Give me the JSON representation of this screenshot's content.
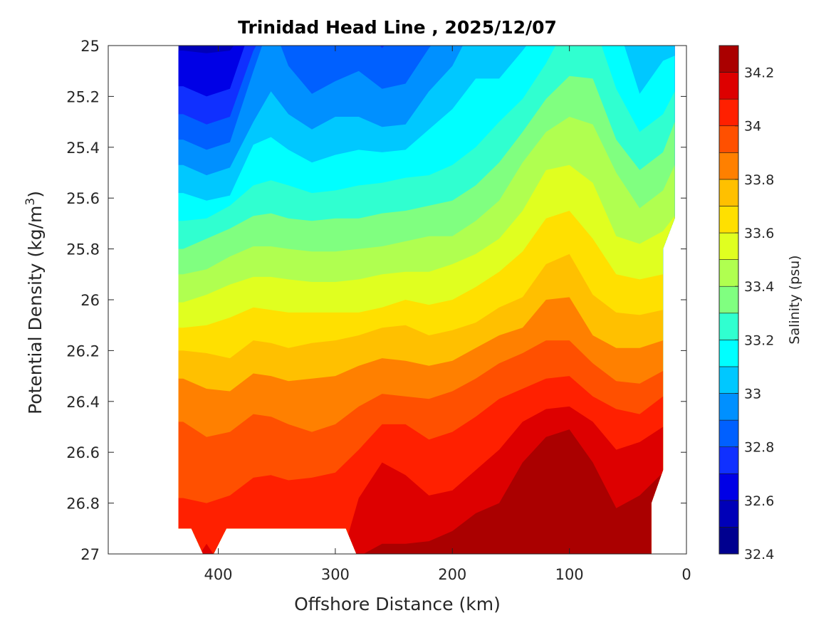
{
  "chart_data": {
    "type": "contourf",
    "title": "Trinidad Head Line , 2025/12/07",
    "xlabel": "Offshore Distance (km)",
    "ylabel": {
      "main": "Potential Density (kg/m",
      "sup": "3",
      "end": ")"
    },
    "xlim": [
      0,
      494
    ],
    "x_reversed": true,
    "ylim": [
      25,
      27
    ],
    "y_reversed": true,
    "grid": false,
    "x_ticks": [
      400,
      300,
      200,
      100,
      0
    ],
    "x_tick_labels": [
      "400",
      "300",
      "200",
      "100",
      "0"
    ],
    "y_ticks": [
      25,
      25.2,
      25.4,
      25.6,
      25.8,
      26,
      26.2,
      26.4,
      26.6,
      26.8,
      27
    ],
    "y_tick_labels": [
      "25",
      "25.2",
      "25.4",
      "25.6",
      "25.8",
      "26",
      "26.2",
      "26.4",
      "26.6",
      "26.8",
      "27"
    ],
    "colorbar": {
      "label": "Salinity (psu)",
      "min": 32.4,
      "max": 34.3,
      "step": 0.1,
      "ticks": [
        32.4,
        32.6,
        32.8,
        33,
        33.2,
        33.4,
        33.6,
        33.8,
        34,
        34.2
      ],
      "tick_labels": [
        "32.4",
        "32.6",
        "32.8",
        "33",
        "33.2",
        "33.4",
        "33.6",
        "33.8",
        "34",
        "34.2"
      ],
      "colors": [
        "#00008f",
        "#0000b8",
        "#0000e6",
        "#1030ff",
        "#0060ff",
        "#0090ff",
        "#00c8ff",
        "#00ffff",
        "#30ffd0",
        "#80ff80",
        "#b0ff50",
        "#e0ff20",
        "#ffe000",
        "#ffc000",
        "#ff8000",
        "#ff5000",
        "#ff2000",
        "#dd0000",
        "#aa0000"
      ]
    },
    "distances_km": [
      430,
      410,
      390,
      370,
      355,
      340,
      320,
      300,
      280,
      260,
      240,
      220,
      200,
      180,
      160,
      140,
      120,
      100,
      80,
      60,
      40,
      20,
      10
    ],
    "isolines": [
      {
        "level": 32.6,
        "density": [
          25.02,
          25.03,
          25.02,
          24.9,
          24.9,
          24.9,
          24.9,
          24.9,
          24.9,
          24.9,
          24.9,
          24.9,
          24.9,
          24.9,
          24.9,
          24.9,
          24.9,
          24.9,
          24.9,
          24.9,
          24.9,
          24.9,
          24.9
        ]
      },
      {
        "level": 32.7,
        "density": [
          25.16,
          25.2,
          25.17,
          24.9,
          24.9,
          24.9,
          24.9,
          24.9,
          24.9,
          24.9,
          24.9,
          24.9,
          24.9,
          24.9,
          24.9,
          24.9,
          24.9,
          24.9,
          24.9,
          24.9,
          24.9,
          24.9,
          24.9
        ]
      },
      {
        "level": 32.8,
        "density": [
          25.27,
          25.31,
          25.28,
          25.02,
          24.9,
          24.9,
          24.9,
          24.9,
          24.9,
          25.01,
          24.9,
          24.9,
          24.9,
          24.9,
          24.9,
          24.9,
          24.9,
          24.9,
          24.9,
          24.9,
          24.9,
          24.9,
          24.9
        ]
      },
      {
        "level": 32.9,
        "density": [
          25.37,
          25.41,
          25.38,
          25.1,
          24.9,
          25.08,
          25.19,
          25.14,
          25.1,
          25.17,
          25.15,
          25.01,
          24.9,
          24.9,
          24.9,
          24.9,
          24.9,
          24.9,
          24.9,
          24.9,
          24.9,
          24.9,
          24.9
        ]
      },
      {
        "level": 33.0,
        "density": [
          25.47,
          25.51,
          25.48,
          25.3,
          25.18,
          25.27,
          25.33,
          25.28,
          25.28,
          25.32,
          25.31,
          25.18,
          25.08,
          24.9,
          24.9,
          24.9,
          24.9,
          24.9,
          24.9,
          24.9,
          24.9,
          24.9,
          24.9
        ]
      },
      {
        "level": 33.1,
        "density": [
          25.58,
          25.61,
          25.59,
          25.39,
          25.36,
          25.41,
          25.46,
          25.43,
          25.41,
          25.42,
          25.41,
          25.33,
          25.25,
          25.13,
          25.13,
          25.02,
          24.9,
          24.9,
          24.9,
          24.9,
          25.19,
          25.06,
          25.04
        ]
      },
      {
        "level": 33.2,
        "density": [
          25.69,
          25.68,
          25.63,
          25.55,
          25.53,
          25.55,
          25.58,
          25.57,
          25.55,
          25.54,
          25.52,
          25.51,
          25.47,
          25.4,
          25.3,
          25.21,
          25.07,
          24.9,
          24.9,
          25.17,
          25.34,
          25.27,
          25.18
        ]
      },
      {
        "level": 33.3,
        "density": [
          25.8,
          25.76,
          25.72,
          25.67,
          25.66,
          25.68,
          25.69,
          25.68,
          25.68,
          25.66,
          25.65,
          25.63,
          25.61,
          25.55,
          25.46,
          25.34,
          25.21,
          25.12,
          25.13,
          25.37,
          25.49,
          25.42,
          25.3
        ]
      },
      {
        "level": 33.4,
        "density": [
          25.9,
          25.88,
          25.83,
          25.79,
          25.79,
          25.8,
          25.81,
          25.81,
          25.8,
          25.79,
          25.77,
          25.75,
          25.75,
          25.69,
          25.61,
          25.46,
          25.34,
          25.28,
          25.31,
          25.5,
          25.64,
          25.57,
          25.47
        ]
      },
      {
        "level": 33.5,
        "density": [
          26.01,
          25.98,
          25.94,
          25.91,
          25.91,
          25.92,
          25.93,
          25.93,
          25.92,
          25.9,
          25.89,
          25.89,
          25.86,
          25.82,
          25.76,
          25.65,
          25.49,
          25.47,
          25.54,
          25.75,
          25.78,
          25.73,
          25.67
        ]
      },
      {
        "level": 33.6,
        "density": [
          26.11,
          26.1,
          26.07,
          26.03,
          26.04,
          26.05,
          26.05,
          26.05,
          26.05,
          26.03,
          26.0,
          26.02,
          26.0,
          25.95,
          25.89,
          25.81,
          25.68,
          25.65,
          25.76,
          25.9,
          25.92,
          25.9,
          25.89
        ]
      },
      {
        "level": 33.7,
        "density": [
          26.2,
          26.21,
          26.23,
          26.16,
          26.17,
          26.19,
          26.17,
          26.16,
          26.14,
          26.11,
          26.1,
          26.14,
          26.12,
          26.09,
          26.03,
          25.99,
          25.86,
          25.82,
          25.98,
          26.05,
          26.06,
          26.04,
          26.04
        ]
      },
      {
        "level": 33.8,
        "density": [
          26.31,
          26.35,
          26.36,
          26.29,
          26.3,
          26.32,
          26.31,
          26.3,
          26.26,
          26.23,
          26.24,
          26.26,
          26.24,
          26.19,
          26.14,
          26.11,
          26.0,
          25.99,
          26.14,
          26.19,
          26.19,
          26.16,
          26.16
        ]
      },
      {
        "level": 33.9,
        "density": [
          26.48,
          26.54,
          26.52,
          26.45,
          26.46,
          26.49,
          26.52,
          26.49,
          26.42,
          26.37,
          26.38,
          26.39,
          26.36,
          26.31,
          26.25,
          26.21,
          26.16,
          26.16,
          26.25,
          26.32,
          26.33,
          26.28,
          26.28
        ]
      },
      {
        "level": 34.0,
        "density": [
          26.78,
          26.8,
          26.77,
          26.7,
          26.69,
          26.71,
          26.7,
          26.68,
          26.59,
          26.49,
          26.49,
          26.55,
          26.52,
          26.46,
          26.39,
          26.35,
          26.31,
          26.3,
          26.38,
          26.43,
          26.45,
          26.38,
          26.38
        ]
      },
      {
        "level": 34.1,
        "density": [
          27.1,
          26.96,
          27.1,
          27.1,
          27.1,
          27.1,
          27.1,
          27.1,
          26.78,
          26.64,
          26.69,
          26.77,
          26.75,
          26.67,
          26.59,
          26.48,
          26.43,
          26.42,
          26.48,
          26.59,
          26.56,
          26.5,
          26.5
        ]
      },
      {
        "level": 34.2,
        "density": [
          27.1,
          27.1,
          27.1,
          27.1,
          27.1,
          27.1,
          27.1,
          27.1,
          27.01,
          26.96,
          26.96,
          26.95,
          26.91,
          26.84,
          26.8,
          26.64,
          26.54,
          26.51,
          26.64,
          26.82,
          26.77,
          26.68,
          26.68
        ]
      }
    ],
    "data_extent": [
      [
        434,
        25
      ],
      [
        434,
        26.9
      ],
      [
        423,
        26.9
      ],
      [
        413,
        27
      ],
      [
        404,
        27
      ],
      [
        393,
        26.9
      ],
      [
        291,
        26.9
      ],
      [
        282,
        27
      ],
      [
        30,
        27
      ],
      [
        30,
        26.8
      ],
      [
        20,
        26.67
      ],
      [
        20,
        25.8
      ],
      [
        10,
        25.68
      ],
      [
        10,
        25
      ]
    ]
  }
}
